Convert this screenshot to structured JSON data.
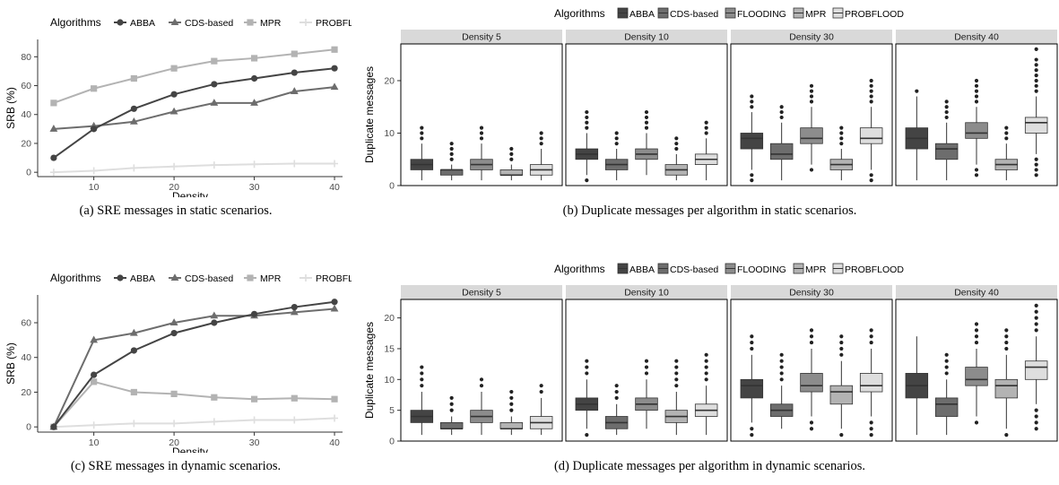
{
  "colors": {
    "ABBA": "#444444",
    "CDS-based": "#6d6d6d",
    "FLOODING": "#8c8c8c",
    "MPR": "#b3b3b3",
    "PROBFLOOD": "#dedede",
    "strip_bg": "#d9d9d9"
  },
  "captions": {
    "a": "(a) SRE messages in static scenarios.",
    "b": "(b) Duplicate messages per algorithm in static scenarios.",
    "c": "(c) SRE messages in dynamic scenarios.",
    "d": "(d) Duplicate messages per algorithm in dynamic scenarios."
  },
  "chart_data": [
    {
      "type": "line",
      "legend_title": "Algorithms",
      "legend_position": "top",
      "xlabel": "Density",
      "ylabel": "SRB (%)",
      "xlim": [
        3,
        41
      ],
      "ylim": [
        -3,
        92
      ],
      "xticks": [
        10,
        20,
        30,
        40
      ],
      "yticks": [
        0,
        20,
        40,
        60,
        80
      ],
      "grid": false,
      "x": [
        5,
        10,
        15,
        20,
        25,
        30,
        35,
        40
      ],
      "series": [
        {
          "name": "ABBA",
          "marker": "circle",
          "values": [
            10,
            30,
            44,
            54,
            61,
            65,
            69,
            72
          ]
        },
        {
          "name": "CDS-based",
          "marker": "triangle",
          "values": [
            30,
            32,
            35,
            42,
            48,
            48,
            56,
            59
          ]
        },
        {
          "name": "MPR",
          "marker": "square",
          "values": [
            48,
            58,
            65,
            72,
            77,
            79,
            82,
            85
          ]
        },
        {
          "name": "PROBFLOOD",
          "marker": "cross",
          "values": [
            0,
            1,
            3,
            4,
            5,
            5.5,
            6,
            6
          ]
        }
      ]
    },
    {
      "type": "box",
      "legend_title": "Algorithms",
      "legend_position": "top",
      "legend_items": [
        "ABBA",
        "CDS-based",
        "FLOODING",
        "MPR",
        "PROBFLOOD"
      ],
      "ylabel": "Duplicate messages",
      "ylim": [
        0,
        27
      ],
      "yticks": [
        0,
        10,
        20
      ],
      "facets": [
        {
          "title": "Density 5",
          "boxes": [
            {
              "name": "ABBA",
              "min": 1,
              "q1": 3,
              "median": 4,
              "q3": 5,
              "max": 8,
              "outliers": [
                9,
                10,
                11
              ]
            },
            {
              "name": "CDS-based",
              "min": 1,
              "q1": 2,
              "median": 3,
              "q3": 3,
              "max": 4,
              "outliers": [
                5,
                6,
                7,
                8
              ]
            },
            {
              "name": "FLOODING",
              "min": 1,
              "q1": 3,
              "median": 4,
              "q3": 5,
              "max": 8,
              "outliers": [
                9,
                10,
                11
              ]
            },
            {
              "name": "MPR",
              "min": 1,
              "q1": 2,
              "median": 2,
              "q3": 3,
              "max": 4,
              "outliers": [
                5,
                6,
                7
              ]
            },
            {
              "name": "PROBFLOOD",
              "min": 1,
              "q1": 2,
              "median": 3,
              "q3": 4,
              "max": 7,
              "outliers": [
                8,
                9,
                10
              ]
            }
          ]
        },
        {
          "title": "Density 10",
          "boxes": [
            {
              "name": "ABBA",
              "min": 2,
              "q1": 5,
              "median": 6,
              "q3": 7,
              "max": 10,
              "outliers": [
                1,
                11,
                12,
                13,
                14
              ]
            },
            {
              "name": "CDS-based",
              "min": 1,
              "q1": 3,
              "median": 4,
              "q3": 5,
              "max": 7,
              "outliers": [
                8,
                9,
                10
              ]
            },
            {
              "name": "FLOODING",
              "min": 2,
              "q1": 5,
              "median": 6,
              "q3": 7,
              "max": 10,
              "outliers": [
                11,
                12,
                13,
                14
              ]
            },
            {
              "name": "MPR",
              "min": 1,
              "q1": 2,
              "median": 3,
              "q3": 4,
              "max": 6,
              "outliers": [
                7,
                8,
                9
              ]
            },
            {
              "name": "PROBFLOOD",
              "min": 1,
              "q1": 4,
              "median": 5,
              "q3": 6,
              "max": 9,
              "outliers": [
                10,
                11,
                12
              ]
            }
          ]
        },
        {
          "title": "Density 30",
          "boxes": [
            {
              "name": "ABBA",
              "min": 3,
              "q1": 7,
              "median": 9,
              "q3": 10,
              "max": 14,
              "outliers": [
                1,
                2,
                15,
                16,
                17
              ]
            },
            {
              "name": "CDS-based",
              "min": 1,
              "q1": 5,
              "median": 6,
              "q3": 8,
              "max": 12,
              "outliers": [
                13,
                14,
                15
              ]
            },
            {
              "name": "FLOODING",
              "min": 4,
              "q1": 8,
              "median": 9,
              "q3": 11,
              "max": 15,
              "outliers": [
                3,
                16,
                17,
                18,
                19
              ]
            },
            {
              "name": "MPR",
              "min": 1,
              "q1": 3,
              "median": 4,
              "q3": 5,
              "max": 7,
              "outliers": [
                8,
                9,
                10,
                11
              ]
            },
            {
              "name": "PROBFLOOD",
              "min": 3,
              "q1": 8,
              "median": 9,
              "q3": 11,
              "max": 15,
              "outliers": [
                1,
                2,
                16,
                17,
                18,
                19,
                20
              ]
            }
          ]
        },
        {
          "title": "Density 40",
          "boxes": [
            {
              "name": "ABBA",
              "min": 1,
              "q1": 7,
              "median": 9,
              "q3": 11,
              "max": 17,
              "outliers": [
                18
              ]
            },
            {
              "name": "CDS-based",
              "min": 1,
              "q1": 5,
              "median": 7,
              "q3": 8,
              "max": 12,
              "outliers": [
                13,
                14,
                15,
                16
              ]
            },
            {
              "name": "FLOODING",
              "min": 4,
              "q1": 9,
              "median": 10,
              "q3": 12,
              "max": 15,
              "outliers": [
                2,
                3,
                16,
                17,
                18,
                19,
                20
              ]
            },
            {
              "name": "MPR",
              "min": 1,
              "q1": 3,
              "median": 4,
              "q3": 5,
              "max": 8,
              "outliers": [
                9,
                10,
                11
              ]
            },
            {
              "name": "PROBFLOOD",
              "min": 6,
              "q1": 10,
              "median": 12,
              "q3": 13,
              "max": 17,
              "outliers": [
                2,
                3,
                4,
                5,
                18,
                19,
                20,
                21,
                22,
                23,
                24,
                26
              ]
            }
          ]
        }
      ]
    },
    {
      "type": "line",
      "legend_title": "Algorithms",
      "legend_position": "top",
      "xlabel": "Density",
      "ylabel": "SRB (%)",
      "xlim": [
        3,
        41
      ],
      "ylim": [
        -3,
        76
      ],
      "xticks": [
        10,
        20,
        30,
        40
      ],
      "yticks": [
        0,
        20,
        40,
        60
      ],
      "grid": false,
      "x": [
        5,
        10,
        15,
        20,
        25,
        30,
        35,
        40
      ],
      "series": [
        {
          "name": "ABBA",
          "marker": "circle",
          "values": [
            0,
            30,
            44,
            54,
            60,
            65,
            69,
            72
          ]
        },
        {
          "name": "CDS-based",
          "marker": "triangle",
          "values": [
            0,
            50,
            54,
            60,
            64,
            64,
            66,
            68
          ]
        },
        {
          "name": "MPR",
          "marker": "square",
          "values": [
            0,
            26,
            20,
            19,
            17,
            16,
            16.5,
            16
          ]
        },
        {
          "name": "PROBFLOOD",
          "marker": "cross",
          "values": [
            0,
            1,
            2,
            2,
            3,
            4,
            4,
            5
          ]
        }
      ]
    },
    {
      "type": "box",
      "legend_title": "Algorithms",
      "legend_position": "top",
      "legend_items": [
        "ABBA",
        "CDS-based",
        "FLOODING",
        "MPR",
        "PROBFLOOD"
      ],
      "ylabel": "Duplicate messages",
      "ylim": [
        0,
        23
      ],
      "yticks": [
        0,
        5,
        10,
        15,
        20
      ],
      "facets": [
        {
          "title": "Density 5",
          "boxes": [
            {
              "name": "ABBA",
              "min": 1,
              "q1": 3,
              "median": 4,
              "q3": 5,
              "max": 8,
              "outliers": [
                9,
                10,
                11,
                12
              ]
            },
            {
              "name": "CDS-based",
              "min": 1,
              "q1": 2,
              "median": 2,
              "q3": 3,
              "max": 4,
              "outliers": [
                5,
                6,
                7
              ]
            },
            {
              "name": "FLOODING",
              "min": 1,
              "q1": 3,
              "median": 4,
              "q3": 5,
              "max": 8,
              "outliers": [
                9,
                10
              ]
            },
            {
              "name": "MPR",
              "min": 1,
              "q1": 2,
              "median": 2,
              "q3": 3,
              "max": 4,
              "outliers": [
                5,
                6,
                7,
                8
              ]
            },
            {
              "name": "PROBFLOOD",
              "min": 1,
              "q1": 2,
              "median": 3,
              "q3": 4,
              "max": 7,
              "outliers": [
                8,
                9
              ]
            }
          ]
        },
        {
          "title": "Density 10",
          "boxes": [
            {
              "name": "ABBA",
              "min": 2,
              "q1": 5,
              "median": 6,
              "q3": 7,
              "max": 10,
              "outliers": [
                1,
                11,
                12,
                13
              ]
            },
            {
              "name": "CDS-based",
              "min": 1,
              "q1": 2,
              "median": 3,
              "q3": 4,
              "max": 6,
              "outliers": [
                7,
                8,
                9
              ]
            },
            {
              "name": "FLOODING",
              "min": 2,
              "q1": 5,
              "median": 6,
              "q3": 7,
              "max": 10,
              "outliers": [
                11,
                12,
                13
              ]
            },
            {
              "name": "MPR",
              "min": 1,
              "q1": 3,
              "median": 4,
              "q3": 5,
              "max": 8,
              "outliers": [
                9,
                10,
                11,
                12,
                13
              ]
            },
            {
              "name": "PROBFLOOD",
              "min": 1,
              "q1": 4,
              "median": 5,
              "q3": 6,
              "max": 9,
              "outliers": [
                10,
                11,
                12,
                13,
                14
              ]
            }
          ]
        },
        {
          "title": "Density 30",
          "boxes": [
            {
              "name": "ABBA",
              "min": 3,
              "q1": 7,
              "median": 9,
              "q3": 10,
              "max": 14,
              "outliers": [
                1,
                2,
                15,
                16,
                17
              ]
            },
            {
              "name": "CDS-based",
              "min": 2,
              "q1": 4,
              "median": 5,
              "q3": 6,
              "max": 9,
              "outliers": [
                10,
                11,
                12,
                13,
                14
              ]
            },
            {
              "name": "FLOODING",
              "min": 4,
              "q1": 8,
              "median": 9,
              "q3": 11,
              "max": 15,
              "outliers": [
                2,
                3,
                16,
                17,
                18
              ]
            },
            {
              "name": "MPR",
              "min": 2,
              "q1": 6,
              "median": 8,
              "q3": 9,
              "max": 13,
              "outliers": [
                1,
                14,
                15,
                16,
                17
              ]
            },
            {
              "name": "PROBFLOOD",
              "min": 4,
              "q1": 8,
              "median": 9,
              "q3": 11,
              "max": 15,
              "outliers": [
                1,
                2,
                3,
                16,
                17,
                18
              ]
            }
          ]
        },
        {
          "title": "Density 40",
          "boxes": [
            {
              "name": "ABBA",
              "min": 1,
              "q1": 7,
              "median": 9,
              "q3": 11,
              "max": 17,
              "outliers": []
            },
            {
              "name": "CDS-based",
              "min": 1,
              "q1": 4,
              "median": 6,
              "q3": 7,
              "max": 10,
              "outliers": [
                11,
                12,
                13,
                14
              ]
            },
            {
              "name": "FLOODING",
              "min": 4,
              "q1": 9,
              "median": 10,
              "q3": 12,
              "max": 15,
              "outliers": [
                3,
                16,
                17,
                18,
                19
              ]
            },
            {
              "name": "MPR",
              "min": 2,
              "q1": 7,
              "median": 9,
              "q3": 10,
              "max": 14,
              "outliers": [
                1,
                15,
                16,
                17,
                18
              ]
            },
            {
              "name": "PROBFLOOD",
              "min": 6,
              "q1": 10,
              "median": 12,
              "q3": 13,
              "max": 17,
              "outliers": [
                2,
                3,
                4,
                5,
                18,
                19,
                20,
                21,
                22
              ]
            }
          ]
        }
      ]
    }
  ]
}
